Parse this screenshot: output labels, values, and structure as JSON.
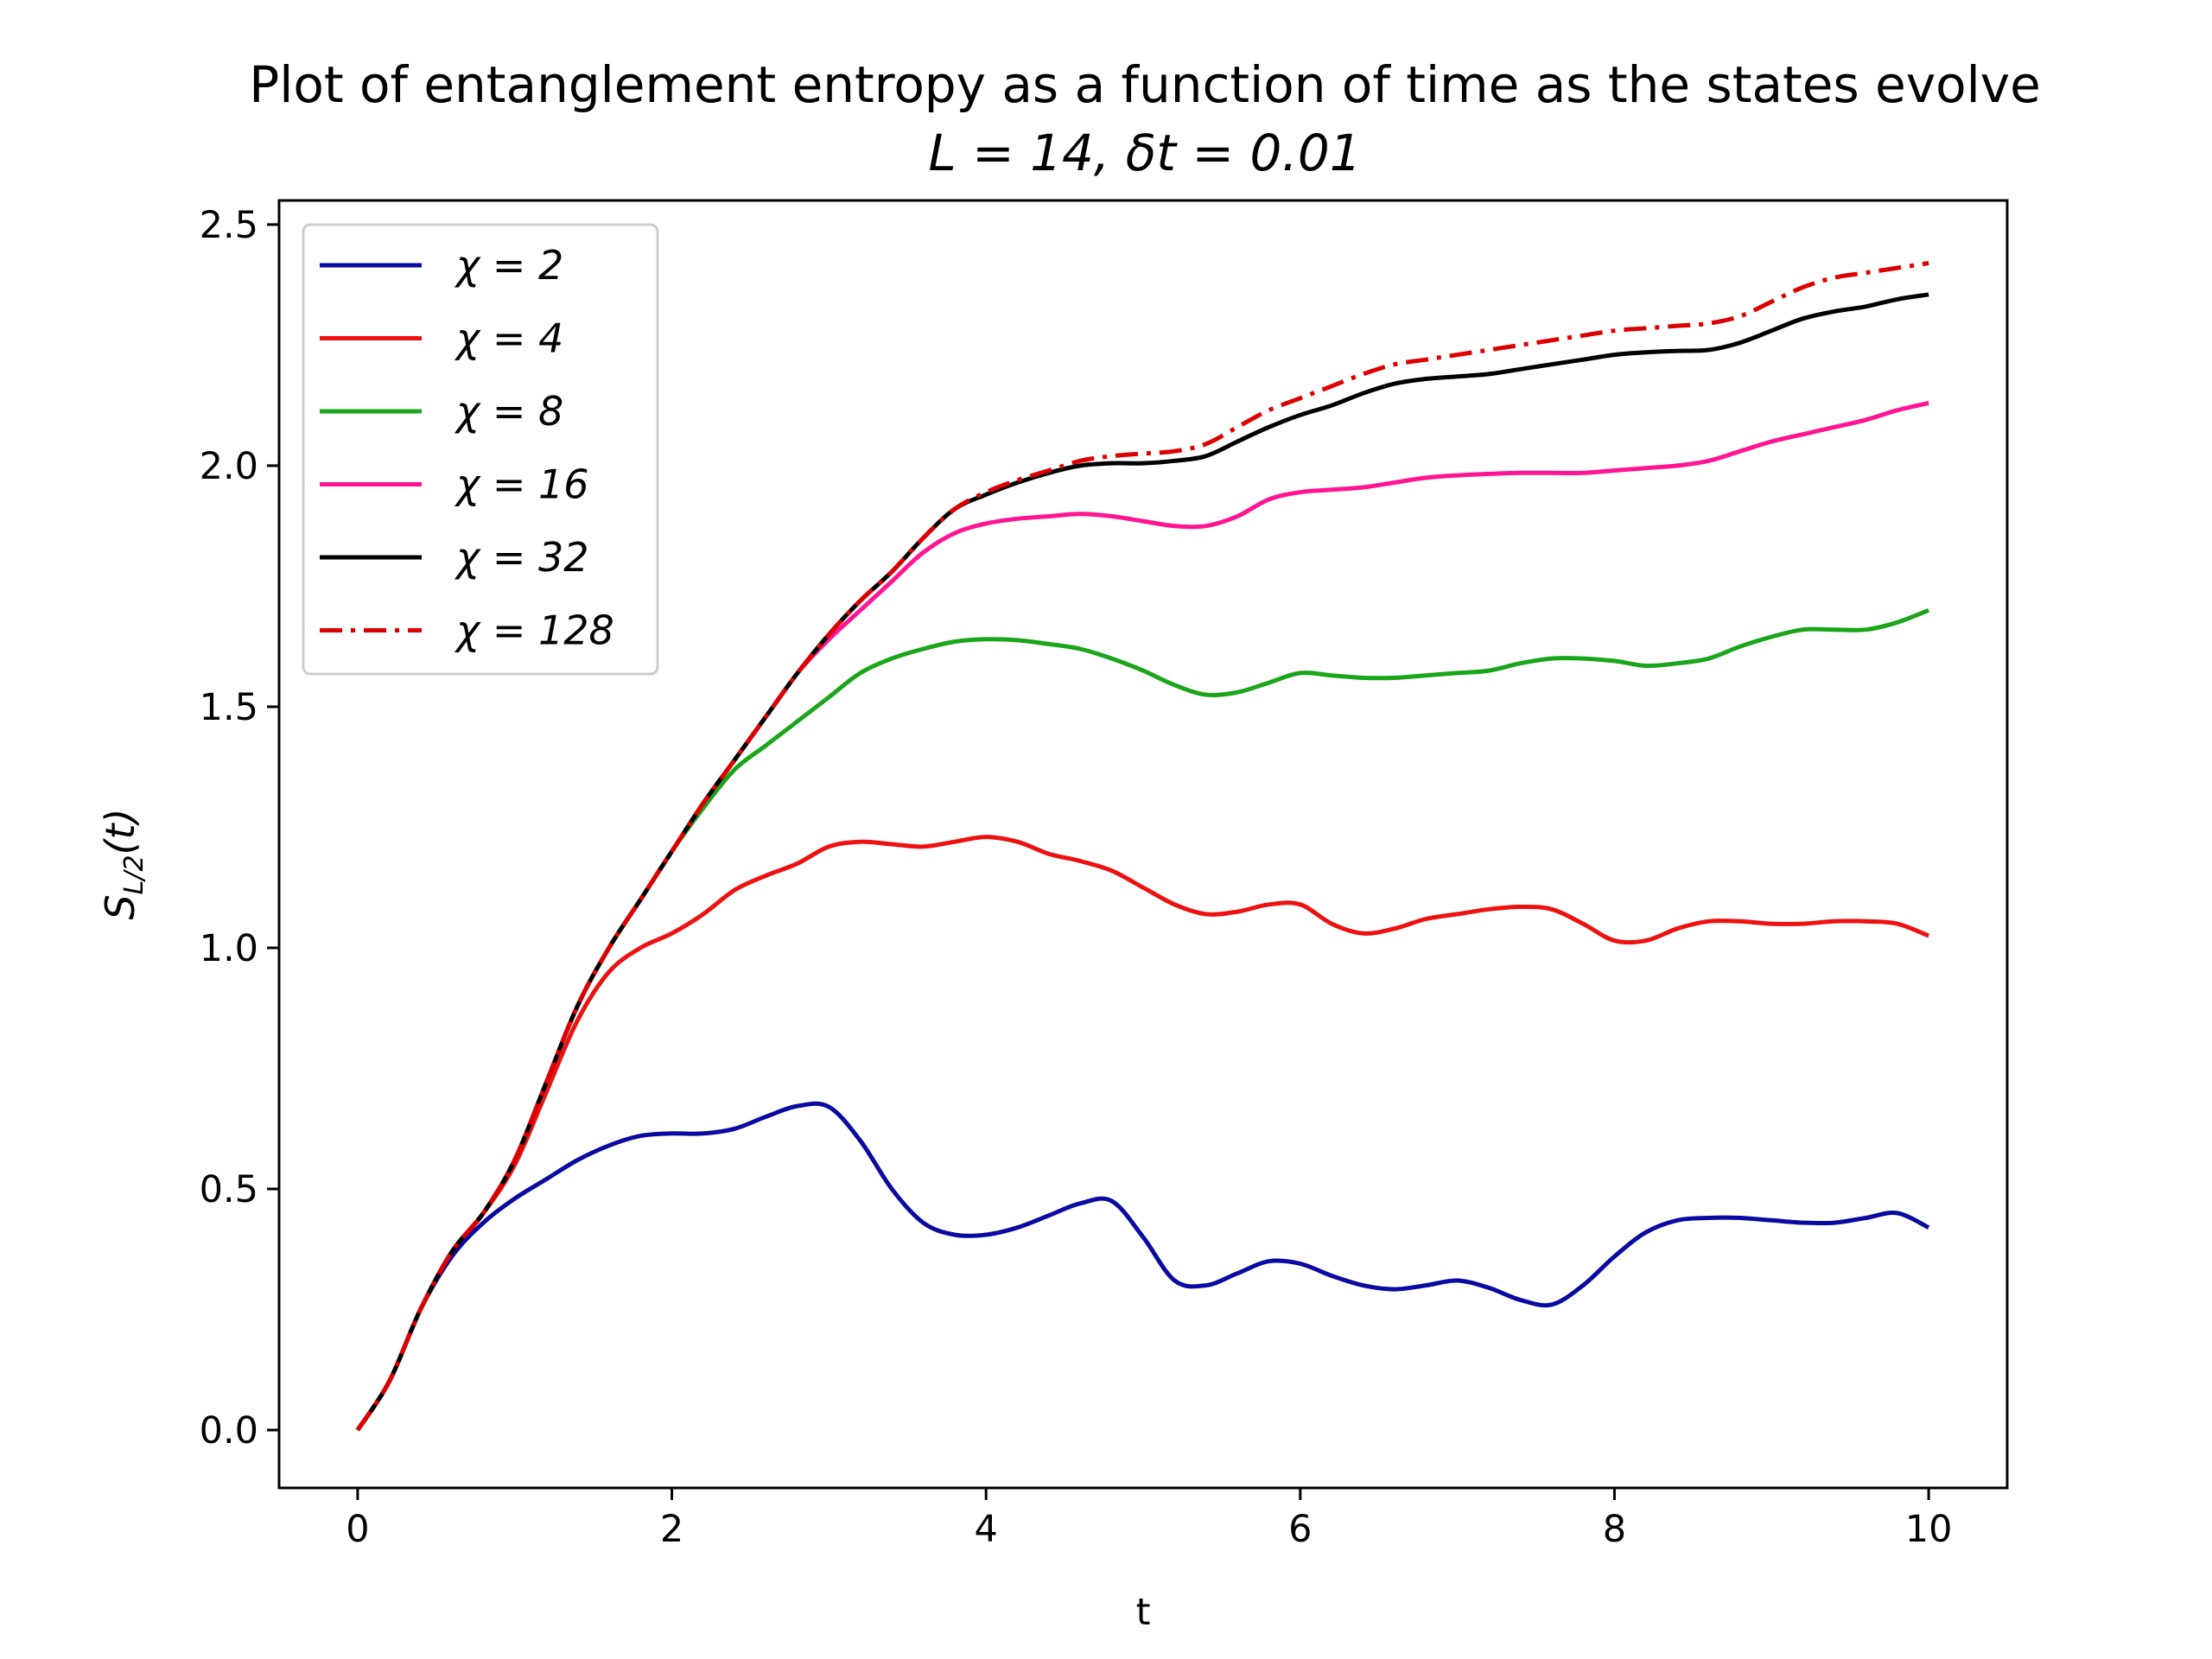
{
  "chart_data": {
    "type": "line",
    "title": "Plot of entanglement entropy as a function of time as the states evolve",
    "subtitle": "L = 14, δt = 0.01",
    "xlabel": "t",
    "ylabel": "S_{L/2}(t)",
    "xlim": [
      -0.5,
      10.5
    ],
    "ylim": [
      -0.12,
      2.55
    ],
    "xticks": [
      0,
      2,
      4,
      6,
      8,
      10
    ],
    "xtick_labels": [
      "0",
      "2",
      "4",
      "6",
      "8",
      "10"
    ],
    "yticks": [
      0.0,
      0.5,
      1.0,
      1.5,
      2.0,
      2.5
    ],
    "ytick_labels": [
      "0.0",
      "0.5",
      "1.0",
      "1.5",
      "2.0",
      "2.5"
    ],
    "grid": false,
    "legend_position": "upper-left",
    "x": [
      0,
      0.2,
      0.4,
      0.6,
      0.8,
      1.0,
      1.2,
      1.4,
      1.6,
      1.8,
      2.0,
      2.2,
      2.4,
      2.6,
      2.8,
      3.0,
      3.2,
      3.4,
      3.6,
      3.8,
      4.0,
      4.2,
      4.4,
      4.6,
      4.8,
      5.0,
      5.2,
      5.4,
      5.6,
      5.8,
      6.0,
      6.2,
      6.4,
      6.6,
      6.8,
      7.0,
      7.2,
      7.4,
      7.6,
      7.8,
      8.0,
      8.2,
      8.4,
      8.6,
      8.8,
      9.0,
      9.2,
      9.4,
      9.6,
      9.8,
      10.0
    ],
    "series": [
      {
        "name": "χ = 2",
        "color": "#0a0aa0",
        "dash": "solid",
        "values": [
          0.0,
          0.1,
          0.25,
          0.36,
          0.43,
          0.48,
          0.52,
          0.56,
          0.59,
          0.61,
          0.615,
          0.615,
          0.625,
          0.65,
          0.672,
          0.67,
          0.6,
          0.5,
          0.43,
          0.405,
          0.405,
          0.42,
          0.445,
          0.47,
          0.475,
          0.4,
          0.31,
          0.3,
          0.325,
          0.35,
          0.345,
          0.32,
          0.3,
          0.292,
          0.3,
          0.31,
          0.295,
          0.27,
          0.26,
          0.3,
          0.36,
          0.41,
          0.435,
          0.44,
          0.44,
          0.435,
          0.43,
          0.43,
          0.44,
          0.45,
          0.42
        ]
      },
      {
        "name": "χ = 4",
        "color": "#ee1111",
        "dash": "solid",
        "values": [
          0.0,
          0.1,
          0.25,
          0.37,
          0.45,
          0.55,
          0.7,
          0.85,
          0.95,
          1.0,
          1.03,
          1.07,
          1.12,
          1.15,
          1.175,
          1.21,
          1.22,
          1.215,
          1.21,
          1.22,
          1.23,
          1.22,
          1.195,
          1.18,
          1.16,
          1.125,
          1.09,
          1.07,
          1.075,
          1.09,
          1.09,
          1.05,
          1.03,
          1.04,
          1.06,
          1.07,
          1.08,
          1.085,
          1.08,
          1.05,
          1.015,
          1.015,
          1.04,
          1.055,
          1.055,
          1.05,
          1.05,
          1.055,
          1.055,
          1.05,
          1.025
        ]
      },
      {
        "name": "χ = 8",
        "color": "#1aa51a",
        "dash": "solid",
        "values": [
          0.0,
          0.1,
          0.25,
          0.37,
          0.45,
          0.56,
          0.72,
          0.88,
          1.0,
          1.1,
          1.2,
          1.29,
          1.37,
          1.42,
          1.47,
          1.52,
          1.57,
          1.6,
          1.62,
          1.635,
          1.64,
          1.638,
          1.63,
          1.62,
          1.6,
          1.575,
          1.545,
          1.525,
          1.53,
          1.55,
          1.57,
          1.565,
          1.56,
          1.56,
          1.565,
          1.57,
          1.575,
          1.59,
          1.6,
          1.6,
          1.595,
          1.585,
          1.59,
          1.6,
          1.625,
          1.645,
          1.66,
          1.66,
          1.66,
          1.675,
          1.7
        ]
      },
      {
        "name": "χ = 16",
        "color": "#ff1493",
        "dash": "solid",
        "values": [
          0.0,
          0.1,
          0.25,
          0.37,
          0.45,
          0.56,
          0.72,
          0.88,
          1.0,
          1.1,
          1.2,
          1.3,
          1.39,
          1.48,
          1.57,
          1.64,
          1.7,
          1.76,
          1.82,
          1.86,
          1.88,
          1.89,
          1.895,
          1.9,
          1.895,
          1.885,
          1.875,
          1.875,
          1.895,
          1.93,
          1.945,
          1.95,
          1.955,
          1.965,
          1.975,
          1.98,
          1.983,
          1.985,
          1.985,
          1.985,
          1.99,
          1.995,
          2.0,
          2.01,
          2.03,
          2.05,
          2.065,
          2.08,
          2.095,
          2.115,
          2.13
        ]
      },
      {
        "name": "χ = 32",
        "color": "#000000",
        "dash": "solid",
        "values": [
          0.0,
          0.1,
          0.25,
          0.37,
          0.45,
          0.56,
          0.72,
          0.88,
          1.0,
          1.1,
          1.2,
          1.3,
          1.39,
          1.48,
          1.57,
          1.65,
          1.72,
          1.78,
          1.85,
          1.91,
          1.94,
          1.965,
          1.985,
          2.0,
          2.005,
          2.005,
          2.01,
          2.02,
          2.05,
          2.08,
          2.105,
          2.125,
          2.15,
          2.17,
          2.18,
          2.185,
          2.19,
          2.2,
          2.21,
          2.22,
          2.23,
          2.235,
          2.238,
          2.24,
          2.255,
          2.28,
          2.305,
          2.32,
          2.33,
          2.345,
          2.355
        ]
      },
      {
        "name": "χ = 128",
        "color": "#dd0000",
        "dash": "dashdot",
        "values": [
          0.0,
          0.1,
          0.25,
          0.37,
          0.45,
          0.56,
          0.72,
          0.88,
          1.0,
          1.1,
          1.2,
          1.3,
          1.39,
          1.48,
          1.57,
          1.65,
          1.72,
          1.78,
          1.85,
          1.91,
          1.945,
          1.97,
          1.99,
          2.01,
          2.02,
          2.025,
          2.03,
          2.045,
          2.08,
          2.115,
          2.14,
          2.165,
          2.19,
          2.21,
          2.22,
          2.23,
          2.24,
          2.25,
          2.26,
          2.27,
          2.28,
          2.285,
          2.29,
          2.295,
          2.31,
          2.34,
          2.37,
          2.39,
          2.4,
          2.41,
          2.42
        ]
      }
    ]
  }
}
